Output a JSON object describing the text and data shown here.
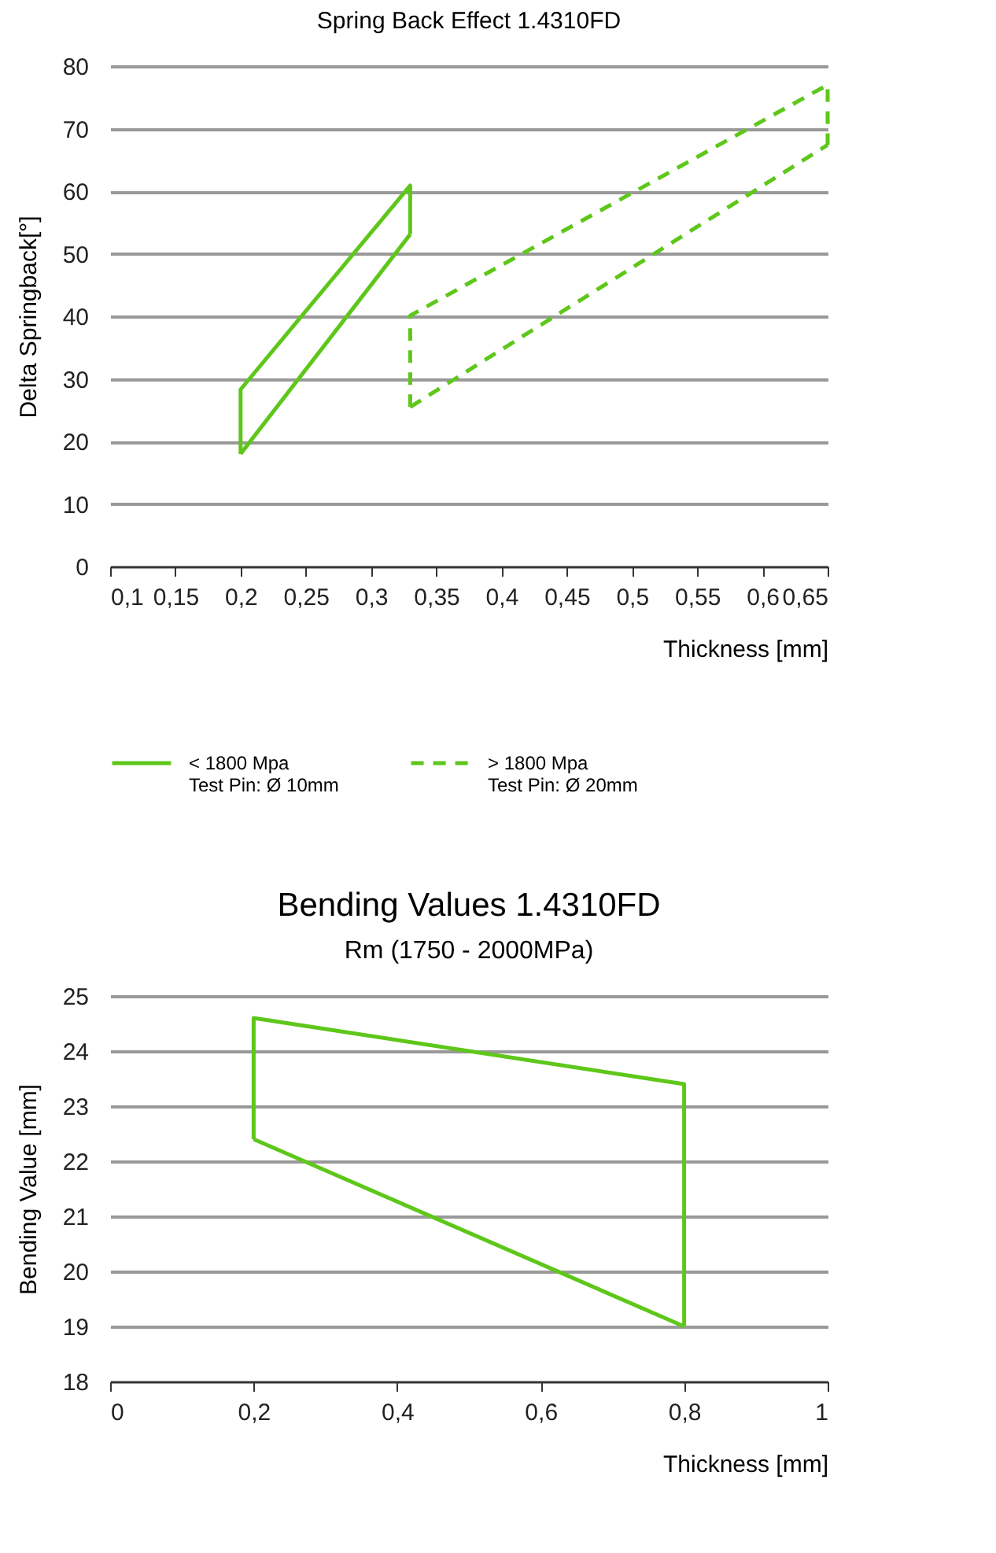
{
  "chart_data": [
    {
      "type": "line",
      "title": "Spring Back Effect 1.4310FD",
      "xlabel": "Thickness [mm]",
      "ylabel": "Delta Springback[°]",
      "xlim": [
        0.1,
        0.65
      ],
      "xticks": [
        {
          "value": 0.1,
          "label": "0,1"
        },
        {
          "value": 0.15,
          "label": "0,15"
        },
        {
          "value": 0.2,
          "label": "0,2"
        },
        {
          "value": 0.25,
          "label": "0,25"
        },
        {
          "value": 0.3,
          "label": "0,3"
        },
        {
          "value": 0.35,
          "label": "0,35"
        },
        {
          "value": 0.4,
          "label": "0,4"
        },
        {
          "value": 0.45,
          "label": "0,45"
        },
        {
          "value": 0.5,
          "label": "0,5"
        },
        {
          "value": 0.55,
          "label": "0,55"
        },
        {
          "value": 0.6,
          "label": "0,6"
        },
        {
          "value": 0.65,
          "label": "0,65"
        }
      ],
      "ylim": [
        0,
        80
      ],
      "yticks": [
        0,
        10,
        20,
        30,
        40,
        50,
        60,
        70,
        80
      ],
      "grid": "y",
      "legend": "bottom",
      "series": [
        {
          "name": "< 1800 Mpa\nTest Pin: Ø 10mm",
          "color": "#5ec71a",
          "line_style": "solid",
          "x": [
            0.2,
            0.2,
            0.33,
            0.33
          ],
          "values": [
            18,
            28.3,
            60.9,
            53.1
          ]
        },
        {
          "color": "#5ec71a",
          "line_style": "solid",
          "x": [
            0.2,
            0.33
          ],
          "values": [
            18,
            53.1
          ]
        },
        {
          "name": "> 1800 Mpa\nTest Pin: Ø 20mm",
          "color": "#5ec71a",
          "line_style": "dashed",
          "x": [
            0.33,
            0.33,
            0.65,
            0.65
          ],
          "values": [
            25.5,
            40.1,
            77,
            67.4
          ]
        },
        {
          "color": "#5ec71a",
          "line_style": "dashed",
          "x": [
            0.33,
            0.65
          ],
          "values": [
            25.5,
            67.4
          ]
        }
      ]
    },
    {
      "type": "line",
      "title": "Bending Values 1.4310FD",
      "subtitle": "Rm (1750 - 2000MPa)",
      "xlabel": "Thickness [mm]",
      "ylabel": "Bending Value [mm]",
      "xlim": [
        0,
        1
      ],
      "xticks": [
        0,
        {
          "value": 0.2,
          "label": "0,2"
        },
        {
          "value": 0.4,
          "label": "0,4"
        },
        {
          "value": 0.6,
          "label": "0,6"
        },
        {
          "value": 0.8,
          "label": "0,8"
        },
        1
      ],
      "ylim": [
        18,
        25
      ],
      "yticks": [
        18,
        19,
        20,
        21,
        22,
        23,
        24,
        25
      ],
      "grid": "y",
      "series": [
        {
          "color": "#5ec71a",
          "line_style": "solid",
          "x": [
            0.2,
            0.2,
            0.8,
            0.8
          ],
          "values": [
            22.4,
            24.6,
            23.4,
            19
          ]
        },
        {
          "color": "#5ec71a",
          "line_style": "solid",
          "x": [
            0.2,
            0.8
          ],
          "values": [
            22.4,
            19
          ]
        }
      ]
    }
  ]
}
